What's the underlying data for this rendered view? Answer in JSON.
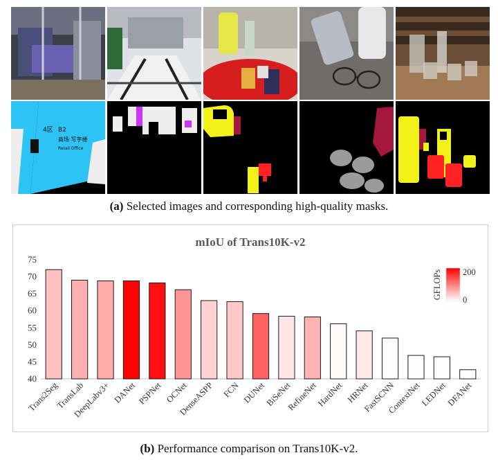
{
  "top_caption": {
    "label": "(a)",
    "text": " Selected images and corresponding high-quality masks."
  },
  "bottom_caption": {
    "label": "(b)",
    "text": " Performance comparison on Trans10K-v2."
  },
  "images": {
    "row1": [
      "mall-glass-door-photo",
      "lobby-glass-doors-photo",
      "table-bottles-cups-photo",
      "glasses-bottle-table-photo",
      "glassware-on-tray-photo"
    ],
    "row2": [
      "mask-glass-wall-signage",
      "mask-glass-doors",
      "mask-bottle-cups",
      "mask-eyeglasses-bottle",
      "mask-glassware"
    ]
  },
  "mask_text": {
    "sign_1": "4区",
    "sign_2": "B2",
    "sign_3": "商场  写字楼",
    "sign_4": "Retail  Office"
  },
  "colors": {
    "mask_bg": "#000000",
    "mask_cyan": "#2ec3f5",
    "mask_yellow": "#f2f21a",
    "mask_red": "#ff2222",
    "mask_maroon": "#a3183c",
    "mask_gray": "#9b9b9b",
    "mask_white": "#eeeeee",
    "mask_magenta": "#cc33ff",
    "bar_low": "#ffffff",
    "bar_high": "#ff0000"
  },
  "chart_data": {
    "type": "bar",
    "title": "mIoU of Trans10K-v2",
    "categories": [
      "Trans2Seg",
      "TransLab",
      "DeepLabv3+",
      "DANet",
      "PSPNet",
      "OCNet",
      "DenseASPP",
      "FCN",
      "DUNet",
      "BiSeNet",
      "RefineNet",
      "HardNet",
      "HRNet",
      "FastSCNN",
      "ContextNet",
      "LEDNet",
      "DFANet"
    ],
    "values": [
      72.1,
      69.0,
      68.8,
      68.8,
      68.2,
      66.2,
      63.0,
      62.7,
      59.2,
      58.4,
      58.2,
      56.2,
      54.1,
      52.0,
      46.9,
      46.5,
      42.7
    ],
    "gflops": [
      49,
      62,
      66,
      198,
      188,
      82,
      36,
      42,
      123,
      19,
      60,
      4.6,
      18,
      1.0,
      0.9,
      2.5,
      0.5
    ],
    "yticks": [
      40,
      45,
      50,
      55,
      60,
      65,
      70,
      75
    ],
    "ylim": [
      40,
      75
    ],
    "legend": {
      "title": "GFLOPs",
      "max": "200",
      "min": "0",
      "position": "top-right"
    },
    "grid": false
  }
}
